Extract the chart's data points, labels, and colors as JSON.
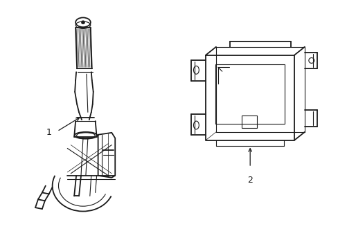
{
  "background_color": "#ffffff",
  "line_color": "#1a1a1a",
  "lw_main": 1.3,
  "lw_detail": 0.8,
  "lw_thin": 0.5,
  "fig_w": 4.89,
  "fig_h": 3.6,
  "dpi": 100,
  "label1": "1",
  "label2": "2",
  "label_fontsize": 9
}
